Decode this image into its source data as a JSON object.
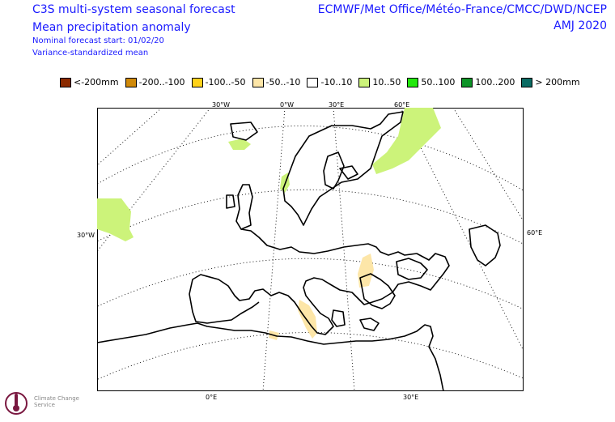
{
  "header": {
    "title_line1": "C3S multi-system seasonal forecast",
    "title_line2": "Mean precipitation anomaly",
    "nominal_start": "Nominal forecast start: 01/02/20",
    "method": "Variance-standardized mean",
    "providers": "ECMWF/Met Office/Météo-France/CMCC/DWD/NCEP",
    "period": "AMJ 2020"
  },
  "legend": [
    {
      "label": "<-200mm",
      "color": "#8b2a00"
    },
    {
      "label": "-200..-100",
      "color": "#d08a0a"
    },
    {
      "label": "-100..-50",
      "color": "#ffd21a"
    },
    {
      "label": "-50..-10",
      "color": "#fde6a8"
    },
    {
      "label": "-10..10",
      "color": "#ffffff"
    },
    {
      "label": "10..50",
      "color": "#ccf37a"
    },
    {
      "label": "50..100",
      "color": "#22e80c"
    },
    {
      "label": "100..200",
      "color": "#0e9428"
    },
    {
      "label": "> 200mm",
      "color": "#0b6b63"
    }
  ],
  "axes": {
    "top": [
      "30°W",
      "0°W",
      "30°E",
      "60°E"
    ],
    "left": "30°W",
    "right": "60°E",
    "bottom": [
      "0°E",
      "30°E"
    ]
  },
  "logo_text": "Climate Change Service"
}
